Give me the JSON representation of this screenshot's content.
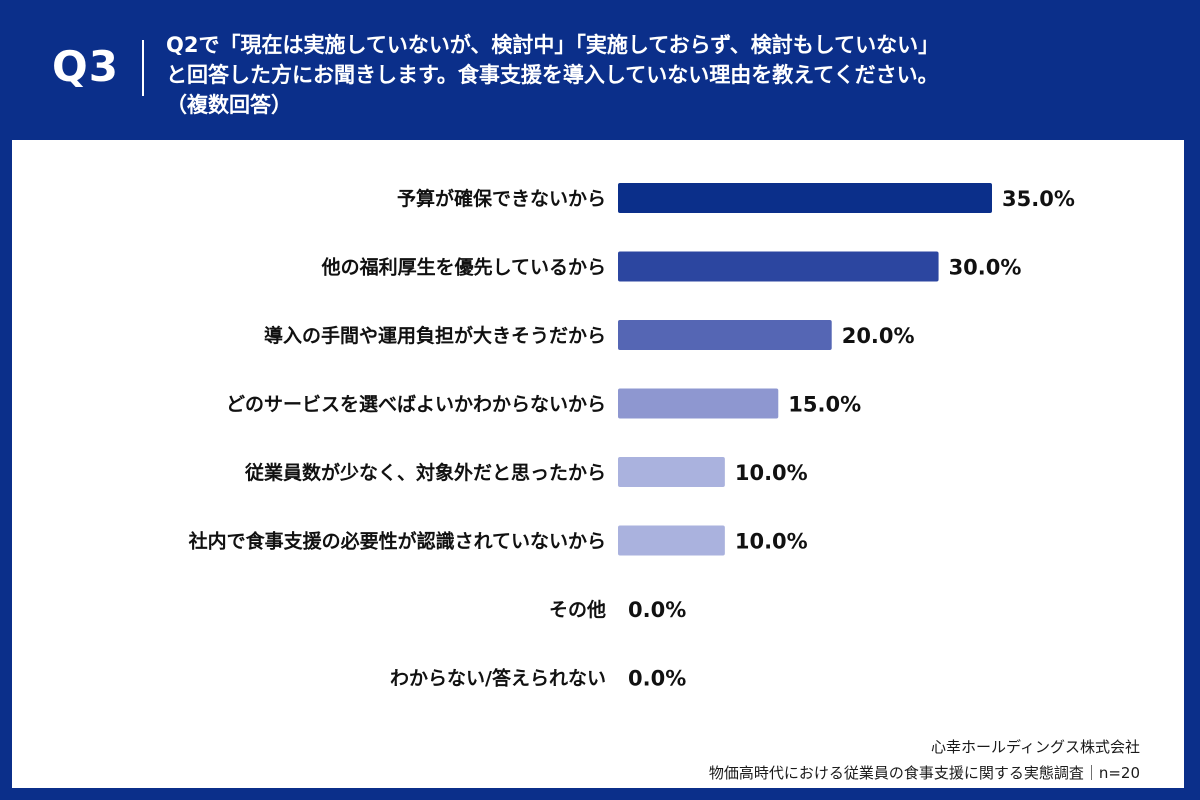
{
  "header": {
    "qnum": "Q3",
    "line1": "Q2で「現在は実施していないが、検討中」「実施しておらず、検討もしていない」",
    "line2": "と回答した方にお聞きします。食事支援を導入していない理由を教えてください。",
    "line3": "（複数回答）"
  },
  "colors": {
    "header_bg": "#0b2f8a",
    "bar_colors": [
      "#0b2f8a",
      "#2c46a0",
      "#5566b4",
      "#8e97d0",
      "#aab2de",
      "#aab2de",
      "#aab2de",
      "#aab2de"
    ]
  },
  "chart_data": {
    "type": "bar",
    "orientation": "horizontal",
    "categories": [
      "予算が確保できないから",
      "他の福利厚生を優先しているから",
      "導入の手間や運用負担が大きそうだから",
      "どのサービスを選べばよいかわからないから",
      "従業員数が少なく、対象外だと思ったから",
      "社内で食事支援の必要性が認識されていないから",
      "その他",
      "わからない/答えられない"
    ],
    "values": [
      35.0,
      30.0,
      20.0,
      15.0,
      10.0,
      10.0,
      0.0,
      0.0
    ],
    "value_labels": [
      "35.0%",
      "30.0%",
      "20.0%",
      "15.0%",
      "10.0%",
      "10.0%",
      "0.0%",
      "0.0%"
    ],
    "xlim": [
      0,
      35
    ],
    "grid": false,
    "legend": "none"
  },
  "footer": {
    "company": "心幸ホールディングス株式会社",
    "survey": "物価高時代における従業員の食事支援に関する実態調査｜n=20"
  }
}
